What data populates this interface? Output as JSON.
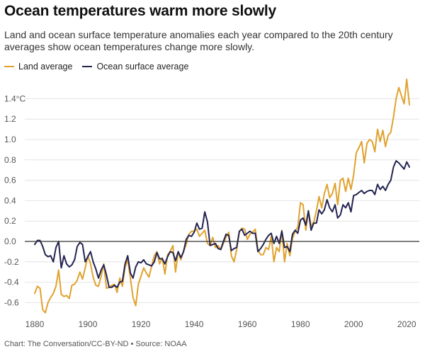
{
  "header": {
    "title": "Ocean temperatures warm more slowly",
    "subtitle": "Land and ocean surface temperature anomalies each year compared to the 20th century averages show ocean temperatures change more slowly."
  },
  "legend": {
    "land_label": "Land average",
    "ocean_label": "Ocean surface average"
  },
  "colors": {
    "land": "#e0a22f",
    "ocean": "#232452",
    "grid": "#e4e4e4",
    "zero_line": "#333333",
    "tick_text": "#555555"
  },
  "source": "Chart: The Conversation/CC-BY-ND • Source: NOAA",
  "chart_data": {
    "type": "line",
    "title": "Ocean temperatures warm more slowly",
    "xlabel": "",
    "ylabel": "",
    "unit": "°C",
    "xlim": [
      1880,
      2021
    ],
    "ylim": [
      -0.75,
      1.5
    ],
    "x_ticks": [
      1880,
      1900,
      1920,
      1940,
      1960,
      1980,
      2000,
      2020
    ],
    "y_ticks": [
      1.4,
      1.2,
      1.0,
      0.8,
      0.6,
      0.4,
      0.2,
      0.0,
      -0.2,
      -0.4,
      -0.6
    ],
    "y_tick_labels": [
      "1.4°C",
      "1.2",
      "1.0",
      "0.8",
      "0.6",
      "0.4",
      "0.2",
      "0.0",
      "-0.2",
      "-0.4",
      "-0.6"
    ],
    "grid": true,
    "legend_position": "top-left",
    "x_start": 1880,
    "series": [
      {
        "name": "Land average",
        "values": [
          -0.51,
          -0.44,
          -0.46,
          -0.67,
          -0.7,
          -0.6,
          -0.55,
          -0.51,
          -0.44,
          -0.28,
          -0.52,
          -0.54,
          -0.53,
          -0.56,
          -0.43,
          -0.42,
          -0.38,
          -0.3,
          -0.37,
          -0.26,
          -0.14,
          -0.22,
          -0.35,
          -0.43,
          -0.44,
          -0.34,
          -0.22,
          -0.46,
          -0.45,
          -0.43,
          -0.42,
          -0.5,
          -0.36,
          -0.44,
          -0.25,
          -0.18,
          -0.36,
          -0.55,
          -0.63,
          -0.42,
          -0.34,
          -0.26,
          -0.31,
          -0.35,
          -0.24,
          -0.14,
          -0.1,
          -0.22,
          -0.16,
          -0.32,
          -0.13,
          -0.1,
          -0.04,
          -0.3,
          -0.1,
          -0.18,
          -0.1,
          -0.03,
          0.07,
          0.1,
          0.1,
          0.12,
          0.05,
          0.08,
          0.11,
          -0.02,
          -0.04,
          0.04,
          -0.06,
          -0.04,
          -0.08,
          -0.02,
          0.04,
          0.09,
          -0.14,
          -0.2,
          -0.08,
          0.1,
          0.13,
          0.12,
          0.02,
          0.07,
          0.09,
          0.12,
          -0.08,
          -0.13,
          -0.13,
          -0.06,
          -0.08,
          0.05,
          -0.2,
          -0.06,
          -0.1,
          0.11,
          -0.2,
          -0.02,
          -0.14,
          0.03,
          0.1,
          0.14,
          0.38,
          0.36,
          0.11,
          0.3,
          0.15,
          0.19,
          0.3,
          0.44,
          0.33,
          0.47,
          0.56,
          0.43,
          0.47,
          0.57,
          0.36,
          0.6,
          0.62,
          0.49,
          0.62,
          0.51,
          0.65,
          0.87,
          0.92,
          0.98,
          0.77,
          0.96,
          1.0,
          0.98,
          0.88,
          1.1,
          0.98,
          1.09,
          0.93,
          1.04,
          1.07,
          1.22,
          1.4,
          1.51,
          1.43,
          1.35,
          1.59,
          1.34
        ]
      },
      {
        "name": "Ocean surface average",
        "values": [
          -0.03,
          0.01,
          0.01,
          -0.05,
          -0.13,
          -0.15,
          -0.14,
          -0.2,
          -0.06,
          0.0,
          -0.26,
          -0.14,
          -0.22,
          -0.25,
          -0.23,
          -0.18,
          -0.05,
          -0.01,
          -0.03,
          -0.2,
          -0.15,
          -0.1,
          -0.2,
          -0.27,
          -0.36,
          -0.28,
          -0.23,
          -0.33,
          -0.45,
          -0.45,
          -0.43,
          -0.45,
          -0.4,
          -0.39,
          -0.22,
          -0.14,
          -0.31,
          -0.36,
          -0.25,
          -0.2,
          -0.21,
          -0.18,
          -0.22,
          -0.23,
          -0.24,
          -0.2,
          -0.11,
          -0.17,
          -0.17,
          -0.22,
          -0.15,
          -0.1,
          -0.11,
          -0.19,
          -0.1,
          -0.16,
          -0.1,
          0.02,
          0.06,
          0.05,
          0.09,
          0.18,
          0.12,
          0.13,
          0.29,
          0.19,
          -0.04,
          -0.03,
          -0.02,
          -0.07,
          -0.08,
          0.0,
          0.07,
          0.06,
          -0.09,
          -0.07,
          -0.06,
          0.1,
          0.12,
          0.06,
          0.08,
          0.1,
          0.08,
          0.08,
          -0.1,
          -0.07,
          -0.03,
          0.02,
          0.06,
          0.08,
          -0.02,
          0.05,
          -0.02,
          0.1,
          -0.06,
          -0.05,
          -0.1,
          0.07,
          0.11,
          0.08,
          0.21,
          0.23,
          0.16,
          0.3,
          0.11,
          0.18,
          0.18,
          0.31,
          0.27,
          0.31,
          0.41,
          0.33,
          0.29,
          0.36,
          0.23,
          0.26,
          0.36,
          0.33,
          0.38,
          0.29,
          0.45,
          0.46,
          0.48,
          0.5,
          0.47,
          0.49,
          0.5,
          0.5,
          0.46,
          0.56,
          0.51,
          0.54,
          0.5,
          0.56,
          0.6,
          0.73,
          0.79,
          0.77,
          0.74,
          0.71,
          0.78,
          0.73
        ]
      }
    ]
  }
}
